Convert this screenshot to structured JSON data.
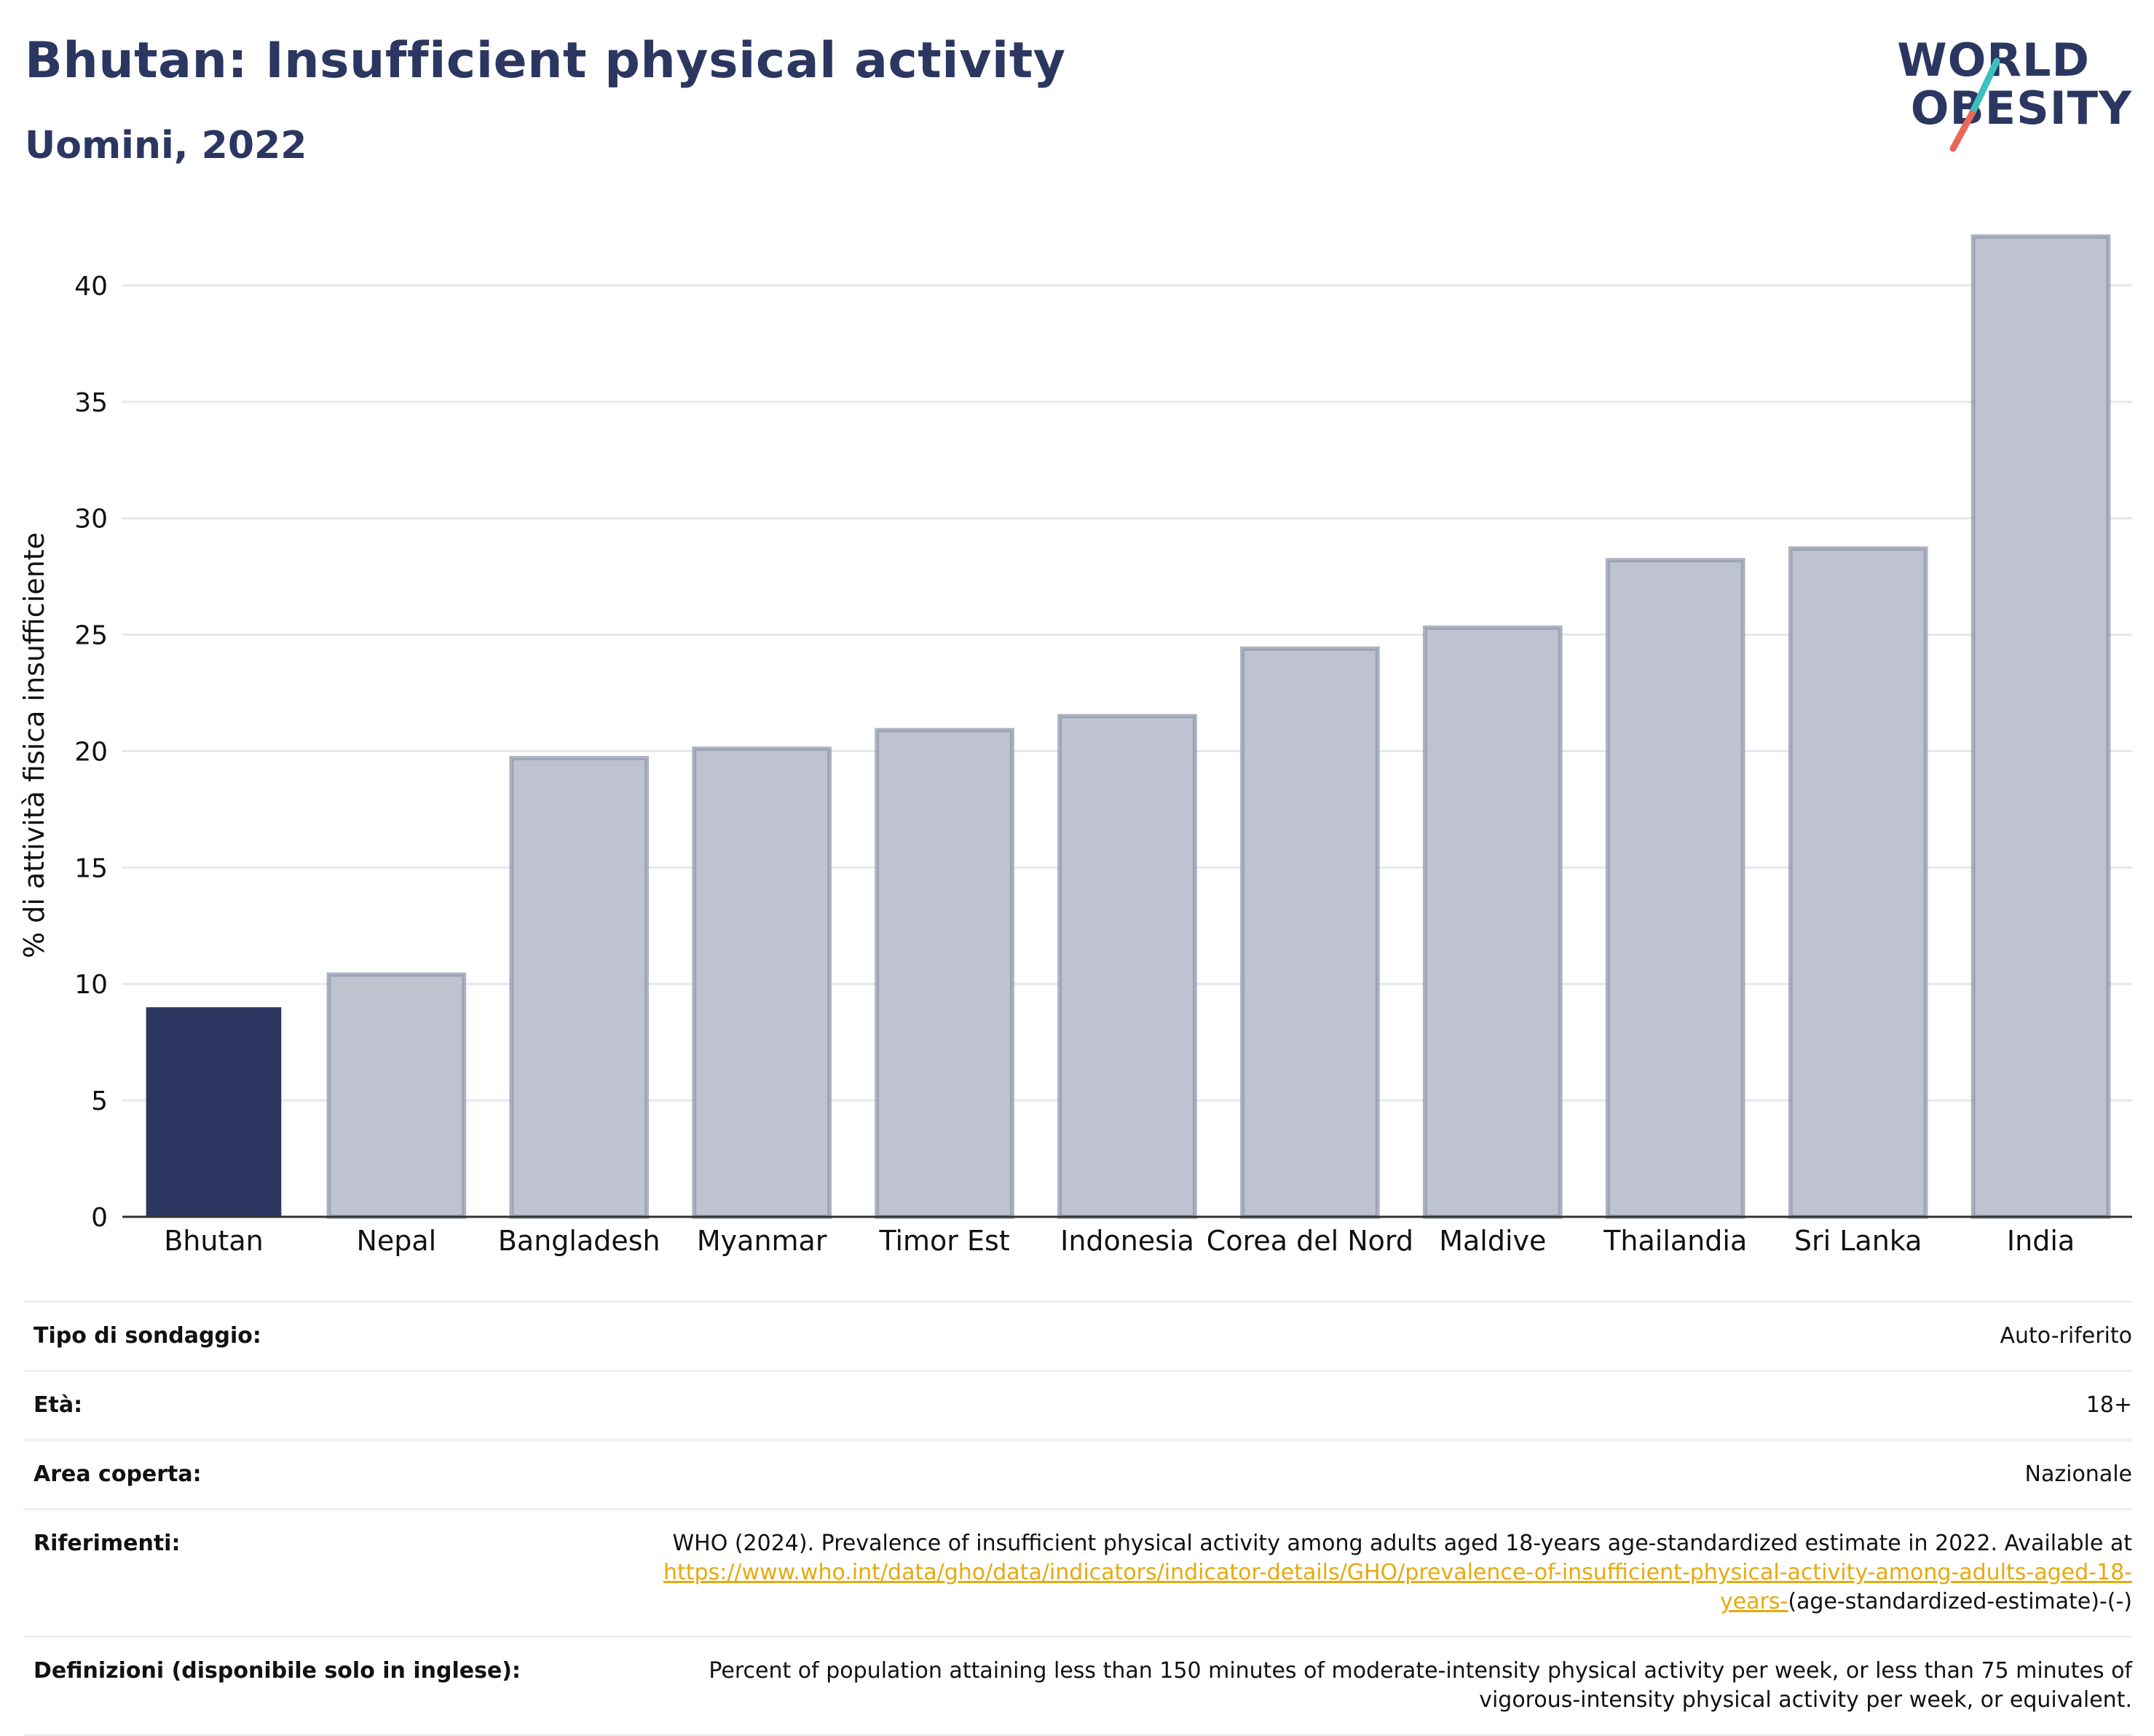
{
  "header": {
    "title": "Bhutan: Insufficient physical activity",
    "subtitle": "Uomini, 2022"
  },
  "logo": {
    "line1": "WORLD",
    "line2": "OBESITY",
    "slash_colors": [
      "#3bbfbf",
      "#e8685a"
    ]
  },
  "colors": {
    "highlight": "#2b3761",
    "bar_fill": "#bfc3cf",
    "bar_stroke": "#9399ad",
    "grid": "#e6e8ee",
    "link": "#e8a90e"
  },
  "chart_data": {
    "type": "bar",
    "title": "",
    "xlabel": "",
    "ylabel": "% di attività fisica insufficiente",
    "categories": [
      "Bhutan",
      "Nepal",
      "Bangladesh",
      "Myanmar",
      "Timor Est",
      "Indonesia",
      "Corea del Nord",
      "Maldive",
      "Thailandia",
      "Sri Lanka",
      "India"
    ],
    "values": [
      9.0,
      10.4,
      19.7,
      20.1,
      20.9,
      21.5,
      24.4,
      25.3,
      28.2,
      28.7,
      42.1
    ],
    "highlight_index": 0,
    "ylim": [
      0,
      43
    ],
    "yticks": [
      0,
      5,
      10,
      15,
      20,
      25,
      30,
      35,
      40
    ],
    "grid": true
  },
  "details": [
    {
      "label": "Tipo di sondaggio:",
      "value": "Auto-riferito"
    },
    {
      "label": "Età:",
      "value": "18+"
    },
    {
      "label": "Area coperta:",
      "value": "Nazionale"
    },
    {
      "label": "Riferimenti:",
      "value_prefix": "WHO (2024). Prevalence of insufficient physical activity among adults aged 18-years age-standardized estimate in 2022. Available at ",
      "link": "https://www.who.int/data/gho/data/indicators/indicator-details/GHO/prevalence-of-insufficient-physical-activity-among-adults-aged-18-years-",
      "value_suffix": "(age-standardized-estimate)-(-)"
    },
    {
      "label": "Definizioni (disponibile solo in inglese):",
      "value": "Percent of population attaining less than 150 minutes of moderate-intensity physical activity per week, or less than 75 minutes of vigorous-intensity physical activity per week, or equivalent."
    }
  ]
}
